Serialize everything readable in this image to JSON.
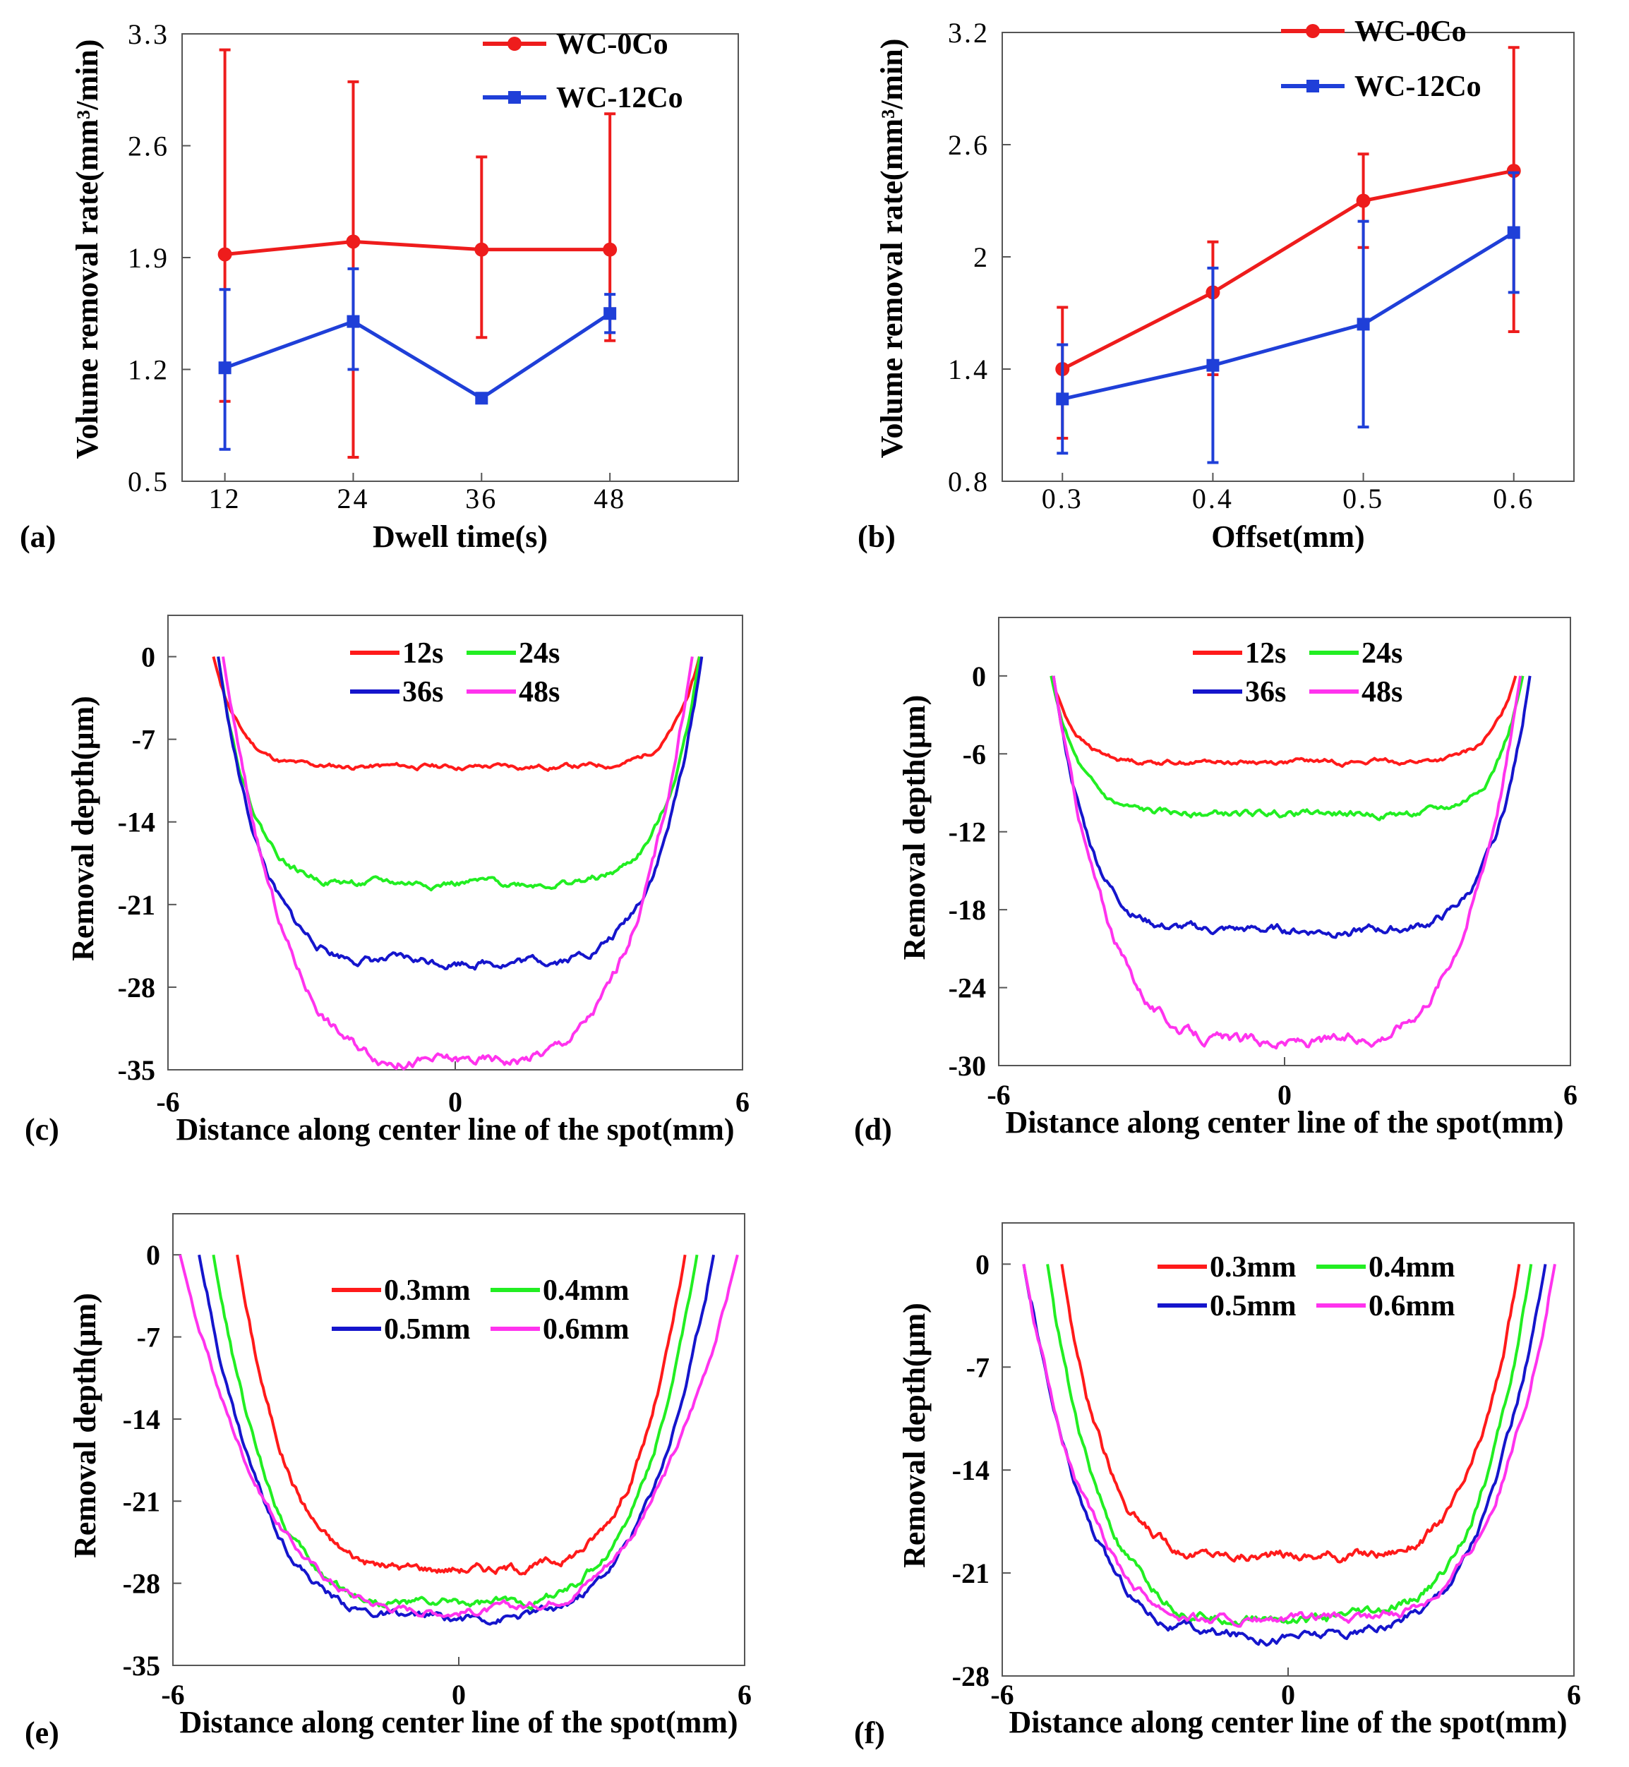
{
  "chart_data": [
    {
      "panel": "(a)",
      "type": "line",
      "xlabel": "Dwell time(s)",
      "ylabel": "Volume removal rate(mm³/min)",
      "xlim": [
        8,
        60
      ],
      "ylim": [
        0.5,
        3.3
      ],
      "xticks": [
        "12",
        "24",
        "36",
        "48"
      ],
      "yticks": [
        "0.5",
        "1.2",
        "1.9",
        "2.6",
        "3.3"
      ],
      "x": [
        12,
        24,
        36,
        48
      ],
      "series": [
        {
          "name": "WC-0Co",
          "color": "#ee1c1c",
          "marker": "circle",
          "values": [
            1.92,
            2.0,
            1.95,
            1.95
          ],
          "err_low": [
            0.92,
            1.35,
            0.55,
            0.57
          ],
          "err_high": [
            1.28,
            1.0,
            0.58,
            0.85
          ]
        },
        {
          "name": "WC-12Co",
          "color": "#1f3fd8",
          "marker": "square",
          "values": [
            1.21,
            1.5,
            1.02,
            1.55
          ],
          "err_low": [
            0.51,
            0.3,
            0.02,
            0.12
          ],
          "err_high": [
            0.49,
            0.33,
            0.02,
            0.12
          ]
        }
      ]
    },
    {
      "panel": "(b)",
      "type": "line",
      "xlabel": "Offset(mm)",
      "ylabel": "Volume removal rate(mm³/min)",
      "xlim": [
        0.26,
        0.64
      ],
      "ylim": [
        0.8,
        3.2
      ],
      "xticks": [
        "0.3",
        "0.4",
        "0.5",
        "0.6"
      ],
      "yticks": [
        "0.8",
        "1.4",
        "2",
        "2.6",
        "3.2"
      ],
      "x": [
        0.3,
        0.4,
        0.5,
        0.6
      ],
      "series": [
        {
          "name": "WC-0Co",
          "color": "#ee1c1c",
          "marker": "circle",
          "values": [
            1.4,
            1.81,
            2.3,
            2.46
          ],
          "err_low": [
            0.37,
            0.44,
            0.25,
            0.86
          ],
          "err_high": [
            0.33,
            0.27,
            0.25,
            0.66
          ]
        },
        {
          "name": "WC-12Co",
          "color": "#1f3fd8",
          "marker": "square",
          "values": [
            1.24,
            1.42,
            1.64,
            2.13
          ],
          "err_low": [
            0.29,
            0.52,
            0.55,
            0.32
          ],
          "err_high": [
            0.29,
            0.52,
            0.55,
            0.32
          ]
        }
      ]
    },
    {
      "panel": "(c)",
      "type": "line",
      "xlabel": "Distance along center line of the spot(mm)",
      "ylabel": "Removal depth(μm)",
      "xlim": [
        -6,
        6
      ],
      "ylim": [
        -35,
        3.5
      ],
      "xticks": [
        "-6",
        "0",
        "6"
      ],
      "yticks": [
        "0",
        "-7",
        "-14",
        "-21",
        "-28",
        "-35"
      ],
      "series": [
        {
          "name": "12s",
          "color": "#ff1a1a",
          "ends": [
            -5.05,
            5.1
          ],
          "depth": -9.3,
          "ramp": 4.1,
          "shape": 2.8,
          "gap": 0,
          "noise": 0.3,
          "seed": 11
        },
        {
          "name": "24s",
          "color": "#22ee22",
          "ends": [
            -4.95,
            5.1
          ],
          "depth": -19.2,
          "ramp": 4.0,
          "shape": 2.2,
          "gap": 0,
          "noise": 0.4,
          "seed": 22
        },
        {
          "name": "36s",
          "color": "#1515cc",
          "ends": [
            -4.95,
            5.15
          ],
          "depth": -25.8,
          "ramp": 3.7,
          "shape": 1.7,
          "gap": 0,
          "noise": 0.5,
          "seed": 33
        },
        {
          "name": "48s",
          "color": "#ff33ee",
          "ends": [
            -4.85,
            4.95
          ],
          "depth": -34.3,
          "ramp": 3.6,
          "shape": 1.2,
          "gap": 0,
          "noise": 0.6,
          "seed": 44
        }
      ],
      "legend": {
        "placement": "top-center",
        "columns": 2
      }
    },
    {
      "panel": "(d)",
      "type": "line",
      "xlabel": "Distance along center line of the spot(mm)",
      "ylabel": "Removal depth(μm)",
      "xlim": [
        -6,
        6
      ],
      "ylim": [
        -30,
        4.5
      ],
      "xticks": [
        "-6",
        "0",
        "6"
      ],
      "yticks": [
        "0",
        "-6",
        "-12",
        "-18",
        "-24",
        "-30"
      ],
      "series": [
        {
          "name": "12s",
          "color": "#ff1a1a",
          "ends": [
            -4.9,
            4.85
          ],
          "depth": -6.6,
          "ramp": 4.0,
          "shape": 3.0,
          "gap": 0,
          "noise": 0.25,
          "seed": 55
        },
        {
          "name": "24s",
          "color": "#22ee22",
          "ends": [
            -4.9,
            5.0
          ],
          "depth": -10.6,
          "ramp": 3.8,
          "shape": 2.6,
          "gap": 0,
          "noise": 0.35,
          "seed": 66
        },
        {
          "name": "36s",
          "color": "#1515cc",
          "ends": [
            -4.85,
            5.15
          ],
          "depth": -19.6,
          "ramp": 3.6,
          "shape": 2.0,
          "gap": 0,
          "noise": 0.45,
          "seed": 77
        },
        {
          "name": "48s",
          "color": "#ff33ee",
          "ends": [
            -4.85,
            4.95
          ],
          "depth": -28.2,
          "ramp": 3.6,
          "shape": 1.3,
          "gap": 0,
          "noise": 0.55,
          "seed": 88
        }
      ],
      "legend": {
        "placement": "top-center",
        "columns": 2
      }
    },
    {
      "panel": "(e)",
      "type": "line",
      "xlabel": "Distance along center line of the spot(mm)",
      "ylabel": "Removal depth(μm)",
      "xlim": [
        -6,
        6
      ],
      "ylim": [
        -35,
        3.5
      ],
      "xticks": [
        "-6",
        "0",
        "6"
      ],
      "yticks": [
        "0",
        "-7",
        "-14",
        "-21",
        "-28",
        "-35"
      ],
      "series": [
        {
          "name": "0.3mm",
          "color": "#ff1a1a",
          "ends": [
            -4.65,
            4.75
          ],
          "depth": -26.7,
          "ramp": 3.5,
          "shape": 1.4,
          "gap": 0,
          "noise": 0.5,
          "seed": 101
        },
        {
          "name": "0.4mm",
          "color": "#22ee22",
          "ends": [
            -5.15,
            5.0
          ],
          "depth": -29.7,
          "ramp": 3.7,
          "shape": 1.3,
          "gap": 0,
          "noise": 0.5,
          "seed": 202
        },
        {
          "name": "0.5mm",
          "color": "#1515cc",
          "ends": [
            -5.45,
            5.35
          ],
          "depth": -31.0,
          "ramp": 3.8,
          "shape": 1.2,
          "gap": 0,
          "noise": 0.5,
          "seed": 303
        },
        {
          "name": "0.6mm",
          "color": "#ff33ee",
          "ends": [
            -5.85,
            5.85
          ],
          "depth": -30.3,
          "ramp": 4.2,
          "shape": 1.0,
          "gap": 0,
          "noise": 0.5,
          "seed": 404
        }
      ],
      "legend": {
        "placement": "top-right",
        "columns": 2
      }
    },
    {
      "panel": "(f)",
      "type": "line",
      "xlabel": "Distance along center line of the spot(mm)",
      "ylabel": "Removal depth(μm)",
      "xlim": [
        -6,
        6
      ],
      "ylim": [
        -28,
        2.8
      ],
      "xticks": [
        "-6",
        "0",
        "6"
      ],
      "yticks": [
        "0",
        "-7",
        "-14",
        "-21",
        "-28"
      ],
      "series": [
        {
          "name": "0.3mm",
          "color": "#ff1a1a",
          "ends": [
            -4.75,
            4.85
          ],
          "depth": -19.8,
          "ramp": 3.6,
          "shape": 1.6,
          "gap": 0,
          "noise": 0.45,
          "seed": 505
        },
        {
          "name": "0.4mm",
          "color": "#22ee22",
          "ends": [
            -5.05,
            5.1
          ],
          "depth": -24.1,
          "ramp": 3.7,
          "shape": 1.4,
          "gap": 0,
          "noise": 0.45,
          "seed": 606
        },
        {
          "name": "0.5mm",
          "color": "#1515cc",
          "ends": [
            -5.55,
            5.4
          ],
          "depth": -25.2,
          "ramp": 4.0,
          "shape": 1.3,
          "gap": 0,
          "noise": 0.45,
          "seed": 707
        },
        {
          "name": "0.6mm",
          "color": "#ff33ee",
          "ends": [
            -5.55,
            5.6
          ],
          "depth": -24.3,
          "ramp": 4.0,
          "shape": 1.3,
          "gap": 0,
          "noise": 0.45,
          "seed": 808
        }
      ],
      "legend": {
        "placement": "top-center",
        "columns": 2
      }
    }
  ]
}
